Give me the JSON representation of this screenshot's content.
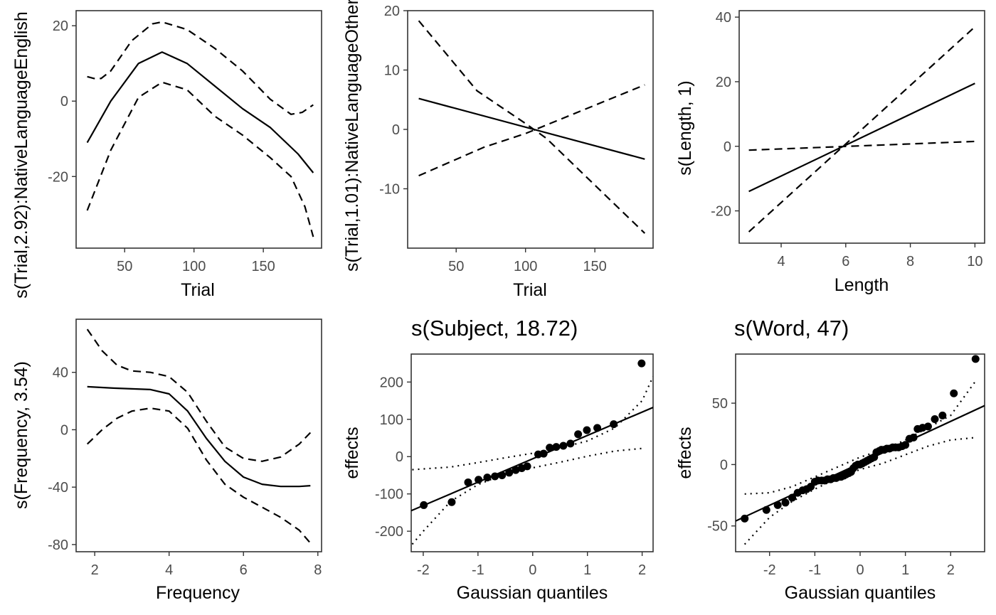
{
  "chart_data": [
    {
      "type": "line",
      "title": "",
      "xlabel": "Trial",
      "ylabel": "s(Trial,2.92):NativeLanguageEnglish",
      "xlim": [
        15,
        192
      ],
      "ylim": [
        -39,
        24
      ],
      "xticks": [
        50,
        100,
        150
      ],
      "yticks": [
        20,
        0,
        -20
      ],
      "ytick_labels": [
        "20",
        "0",
        "-20"
      ],
      "series": [
        {
          "style": "solid",
          "x": [
            23,
            40,
            60,
            77,
            95,
            115,
            135,
            155,
            175,
            186
          ],
          "y": [
            -11,
            0,
            10,
            13,
            10,
            4,
            -2,
            -7,
            -14,
            -19
          ]
        },
        {
          "style": "dashed",
          "x": [
            23,
            28,
            33,
            40,
            55,
            70,
            77,
            95,
            115,
            135,
            155,
            170,
            178,
            186
          ],
          "y": [
            6.5,
            6,
            6,
            8,
            16,
            20.5,
            21,
            19,
            14,
            8,
            0.5,
            -3.5,
            -3,
            -1
          ]
        },
        {
          "style": "dashed",
          "x": [
            23,
            40,
            60,
            77,
            95,
            115,
            135,
            155,
            170,
            180,
            186
          ],
          "y": [
            -29,
            -13,
            1,
            5,
            3,
            -4,
            -9,
            -15,
            -20,
            -28,
            -36
          ]
        }
      ]
    },
    {
      "type": "line",
      "title": "",
      "xlabel": "Trial",
      "ylabel": "s(Trial,1.01):NativeLanguageOther",
      "xlim": [
        15,
        192
      ],
      "ylim": [
        -20,
        20
      ],
      "xticks": [
        50,
        100,
        150
      ],
      "yticks": [
        20,
        10,
        0,
        -10
      ],
      "ytick_labels": [
        "20",
        "10",
        "0",
        "-10"
      ],
      "series": [
        {
          "style": "solid",
          "x": [
            23,
            186
          ],
          "y": [
            5.2,
            -5
          ]
        },
        {
          "style": "dashed",
          "x": [
            23,
            65,
            100,
            115,
            186
          ],
          "y": [
            18.3,
            6.5,
            1,
            -1.5,
            -17.5
          ]
        },
        {
          "style": "dashed",
          "x": [
            23,
            70,
            100,
            186
          ],
          "y": [
            -7.8,
            -3,
            -0.7,
            7.5
          ]
        }
      ]
    },
    {
      "type": "line",
      "title": "",
      "xlabel": "Length",
      "ylabel": "s(Length, 1)",
      "xlim": [
        2.7,
        10.3
      ],
      "ylim": [
        -30,
        42
      ],
      "xticks": [
        4,
        6,
        8,
        10
      ],
      "yticks": [
        40,
        20,
        0,
        -20
      ],
      "ytick_labels": [
        "40",
        "20",
        "0",
        "-20"
      ],
      "series": [
        {
          "style": "solid",
          "x": [
            3,
            10
          ],
          "y": [
            -14,
            19.5
          ]
        },
        {
          "style": "dashed",
          "x": [
            3,
            10
          ],
          "y": [
            -26.5,
            37
          ]
        },
        {
          "style": "dashed",
          "x": [
            3,
            10
          ],
          "y": [
            -1.2,
            1.5
          ]
        }
      ]
    },
    {
      "type": "line",
      "title": "",
      "xlabel": "Frequency",
      "ylabel": "s(Frequency, 3.54)",
      "xlim": [
        1.5,
        8.1
      ],
      "ylim": [
        -85,
        77
      ],
      "xticks": [
        2,
        4,
        6,
        8
      ],
      "yticks": [
        40,
        0,
        -40,
        -80
      ],
      "ytick_labels": [
        "40",
        "0",
        "-40",
        "-80"
      ],
      "series": [
        {
          "style": "solid",
          "x": [
            1.8,
            2.5,
            3.5,
            4.0,
            4.5,
            5.0,
            5.5,
            6.0,
            6.5,
            7.0,
            7.5,
            7.8
          ],
          "y": [
            30,
            29,
            28,
            25,
            13,
            -6,
            -22,
            -33,
            -38,
            -39.5,
            -39.5,
            -39
          ]
        },
        {
          "style": "dashed",
          "x": [
            1.8,
            2.2,
            2.6,
            3.0,
            3.5,
            4.0,
            4.5,
            5.0,
            5.5,
            6.0,
            6.5,
            7.0,
            7.5,
            7.8
          ],
          "y": [
            70,
            55,
            45,
            41,
            40,
            37,
            26,
            6,
            -12,
            -20,
            -22,
            -19,
            -10,
            -2
          ]
        },
        {
          "style": "dashed",
          "x": [
            1.8,
            2.2,
            2.6,
            3.0,
            3.5,
            4.0,
            4.5,
            5.0,
            5.5,
            6.0,
            6.5,
            7.0,
            7.5,
            7.8
          ],
          "y": [
            -10,
            0,
            8,
            13,
            15,
            13,
            1,
            -21,
            -38,
            -47,
            -54,
            -61,
            -70,
            -79
          ]
        }
      ]
    },
    {
      "type": "scatter",
      "title": "s(Subject, 18.72)",
      "xlabel": "Gaussian quantiles",
      "ylabel": "effects",
      "xlim": [
        -2.22,
        2.2
      ],
      "ylim": [
        -255,
        275
      ],
      "xticks": [
        -2,
        -1,
        0,
        1,
        2
      ],
      "yticks": [
        200,
        100,
        0,
        -100,
        -200
      ],
      "xtick_labels": [
        "-2",
        "-1",
        "0",
        "1",
        "2"
      ],
      "ytick_labels": [
        "200",
        "100",
        "0",
        "-100",
        "-200"
      ],
      "points": {
        "x": [
          -1.99,
          -1.48,
          -1.18,
          -0.99,
          -0.83,
          -0.69,
          -0.56,
          -0.43,
          -0.31,
          -0.2,
          -0.1,
          0.1,
          0.2,
          0.31,
          0.43,
          0.56,
          0.69,
          0.83,
          0.99,
          1.18,
          1.48,
          1.99
        ],
        "y": [
          -130,
          -122,
          -69,
          -62,
          -56,
          -53,
          -50,
          -43,
          -36,
          -31,
          -26,
          6,
          8,
          24,
          26,
          29,
          35,
          60,
          71,
          77,
          87,
          250
        ]
      },
      "line": {
        "x": [
          -2.22,
          2.2
        ],
        "y": [
          -145,
          132
        ]
      },
      "band_upper": {
        "x": [
          -2.2,
          -1.5,
          -1,
          -0.5,
          0,
          0.5,
          1,
          1.5,
          2.0,
          2.2
        ],
        "y": [
          -35,
          -28,
          -16,
          -3,
          9,
          23,
          42,
          77,
          150,
          215
        ]
      },
      "band_lower": {
        "x": [
          -2.2,
          -2.0,
          -1.5,
          -1,
          -0.5,
          0,
          0.5,
          1,
          1.5,
          2.0
        ],
        "y": [
          -235,
          -200,
          -120,
          -75,
          -46,
          -30,
          -15,
          1,
          15,
          22
        ]
      }
    },
    {
      "type": "scatter",
      "title": "s(Word, 47)",
      "xlabel": "Gaussian quantiles",
      "ylabel": "effects",
      "xlim": [
        -2.75,
        2.75
      ],
      "ylim": [
        -71,
        90
      ],
      "xticks": [
        -2,
        -1,
        0,
        1,
        2
      ],
      "yticks": [
        50,
        0,
        -50
      ],
      "xtick_labels": [
        "-2",
        "-1",
        "0",
        "1",
        "2"
      ],
      "ytick_labels": [
        "50",
        "0",
        "-50"
      ],
      "points": {
        "x": [
          -2.55,
          -2.07,
          -1.82,
          -1.65,
          -1.5,
          -1.38,
          -1.27,
          -1.18,
          -1.09,
          -1.0,
          -0.93,
          -0.85,
          -0.78,
          -0.72,
          -0.65,
          -0.59,
          -0.53,
          -0.47,
          -0.42,
          -0.36,
          -0.31,
          -0.25,
          -0.2,
          -0.15,
          -0.1,
          -0.05,
          0.0,
          0.05,
          0.1,
          0.15,
          0.2,
          0.25,
          0.31,
          0.36,
          0.42,
          0.47,
          0.53,
          0.59,
          0.65,
          0.72,
          0.78,
          0.85,
          0.93,
          1.0,
          1.09,
          1.18,
          1.27,
          1.38,
          1.5,
          1.65,
          1.82,
          2.07,
          2.55
        ],
        "y": [
          -44,
          -37,
          -33,
          -31,
          -27,
          -23,
          -21,
          -20,
          -18,
          -14,
          -13,
          -13,
          -13,
          -12,
          -12,
          -11,
          -11,
          -10,
          -10,
          -9,
          -8,
          -7,
          -6,
          -3,
          -1,
          0,
          0,
          1,
          2,
          3,
          4,
          5,
          6,
          10,
          11,
          12,
          12,
          13,
          13,
          14,
          14,
          14,
          15,
          16,
          21,
          22,
          29,
          30,
          31,
          37,
          40,
          58,
          86
        ]
      },
      "line": {
        "x": [
          -2.75,
          2.75
        ],
        "y": [
          -46,
          48
        ]
      },
      "band_upper": {
        "x": [
          -2.55,
          -2.0,
          -1.5,
          -1.0,
          -0.5,
          0,
          0.5,
          1.0,
          1.5,
          2.0,
          2.55
        ],
        "y": [
          -24,
          -23,
          -18,
          -10,
          -2,
          6,
          12,
          20,
          30,
          40,
          68
        ]
      },
      "band_lower": {
        "x": [
          -2.55,
          -2.0,
          -1.5,
          -1.0,
          -0.5,
          0,
          0.5,
          1.0,
          1.5,
          2.0,
          2.55
        ],
        "y": [
          -65,
          -43,
          -30,
          -20,
          -11,
          -4,
          1,
          8,
          15,
          20,
          22
        ]
      }
    }
  ]
}
